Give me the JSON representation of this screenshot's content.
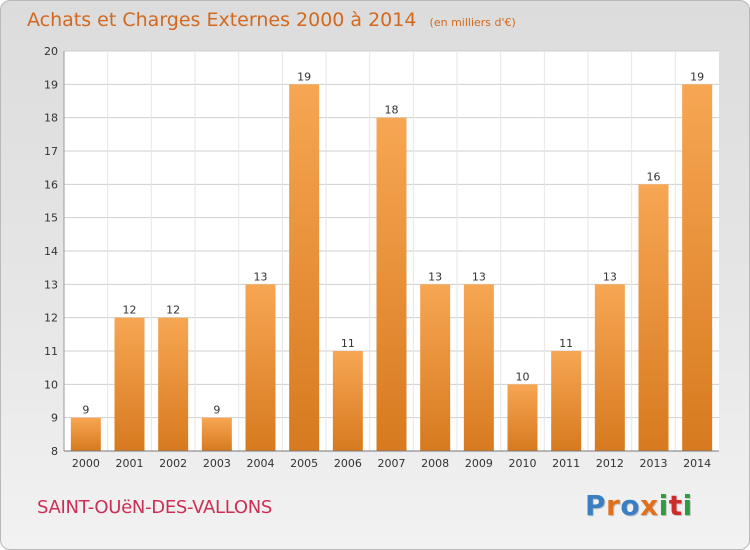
{
  "chart_data": {
    "type": "bar",
    "title": "Achats et Charges Externes 2000 à 2014",
    "subtitle": "(en milliers d'€)",
    "categories": [
      "2000",
      "2001",
      "2002",
      "2003",
      "2004",
      "2005",
      "2006",
      "2007",
      "2008",
      "2009",
      "2010",
      "2011",
      "2012",
      "2013",
      "2014"
    ],
    "values": [
      9,
      12,
      12,
      9,
      13,
      19,
      11,
      18,
      13,
      13,
      10,
      11,
      13,
      16,
      19
    ],
    "ylim": [
      8,
      20
    ],
    "yticks": [
      8,
      9,
      10,
      11,
      12,
      13,
      14,
      15,
      16,
      17,
      18,
      19,
      20
    ],
    "grid": true,
    "colors": {
      "bar_light": "#f7a653",
      "bar_dark": "#d77a1f"
    }
  },
  "footer": {
    "commune": "SAINT-OUëN-DES-VALLONS",
    "brand": "Proxiti",
    "brand_colors": [
      "#3a7fc1",
      "#e0711c",
      "#3a7fc1",
      "#e0711c",
      "#2e9c3f",
      "#d02b2b",
      "#2e9c3f"
    ]
  }
}
